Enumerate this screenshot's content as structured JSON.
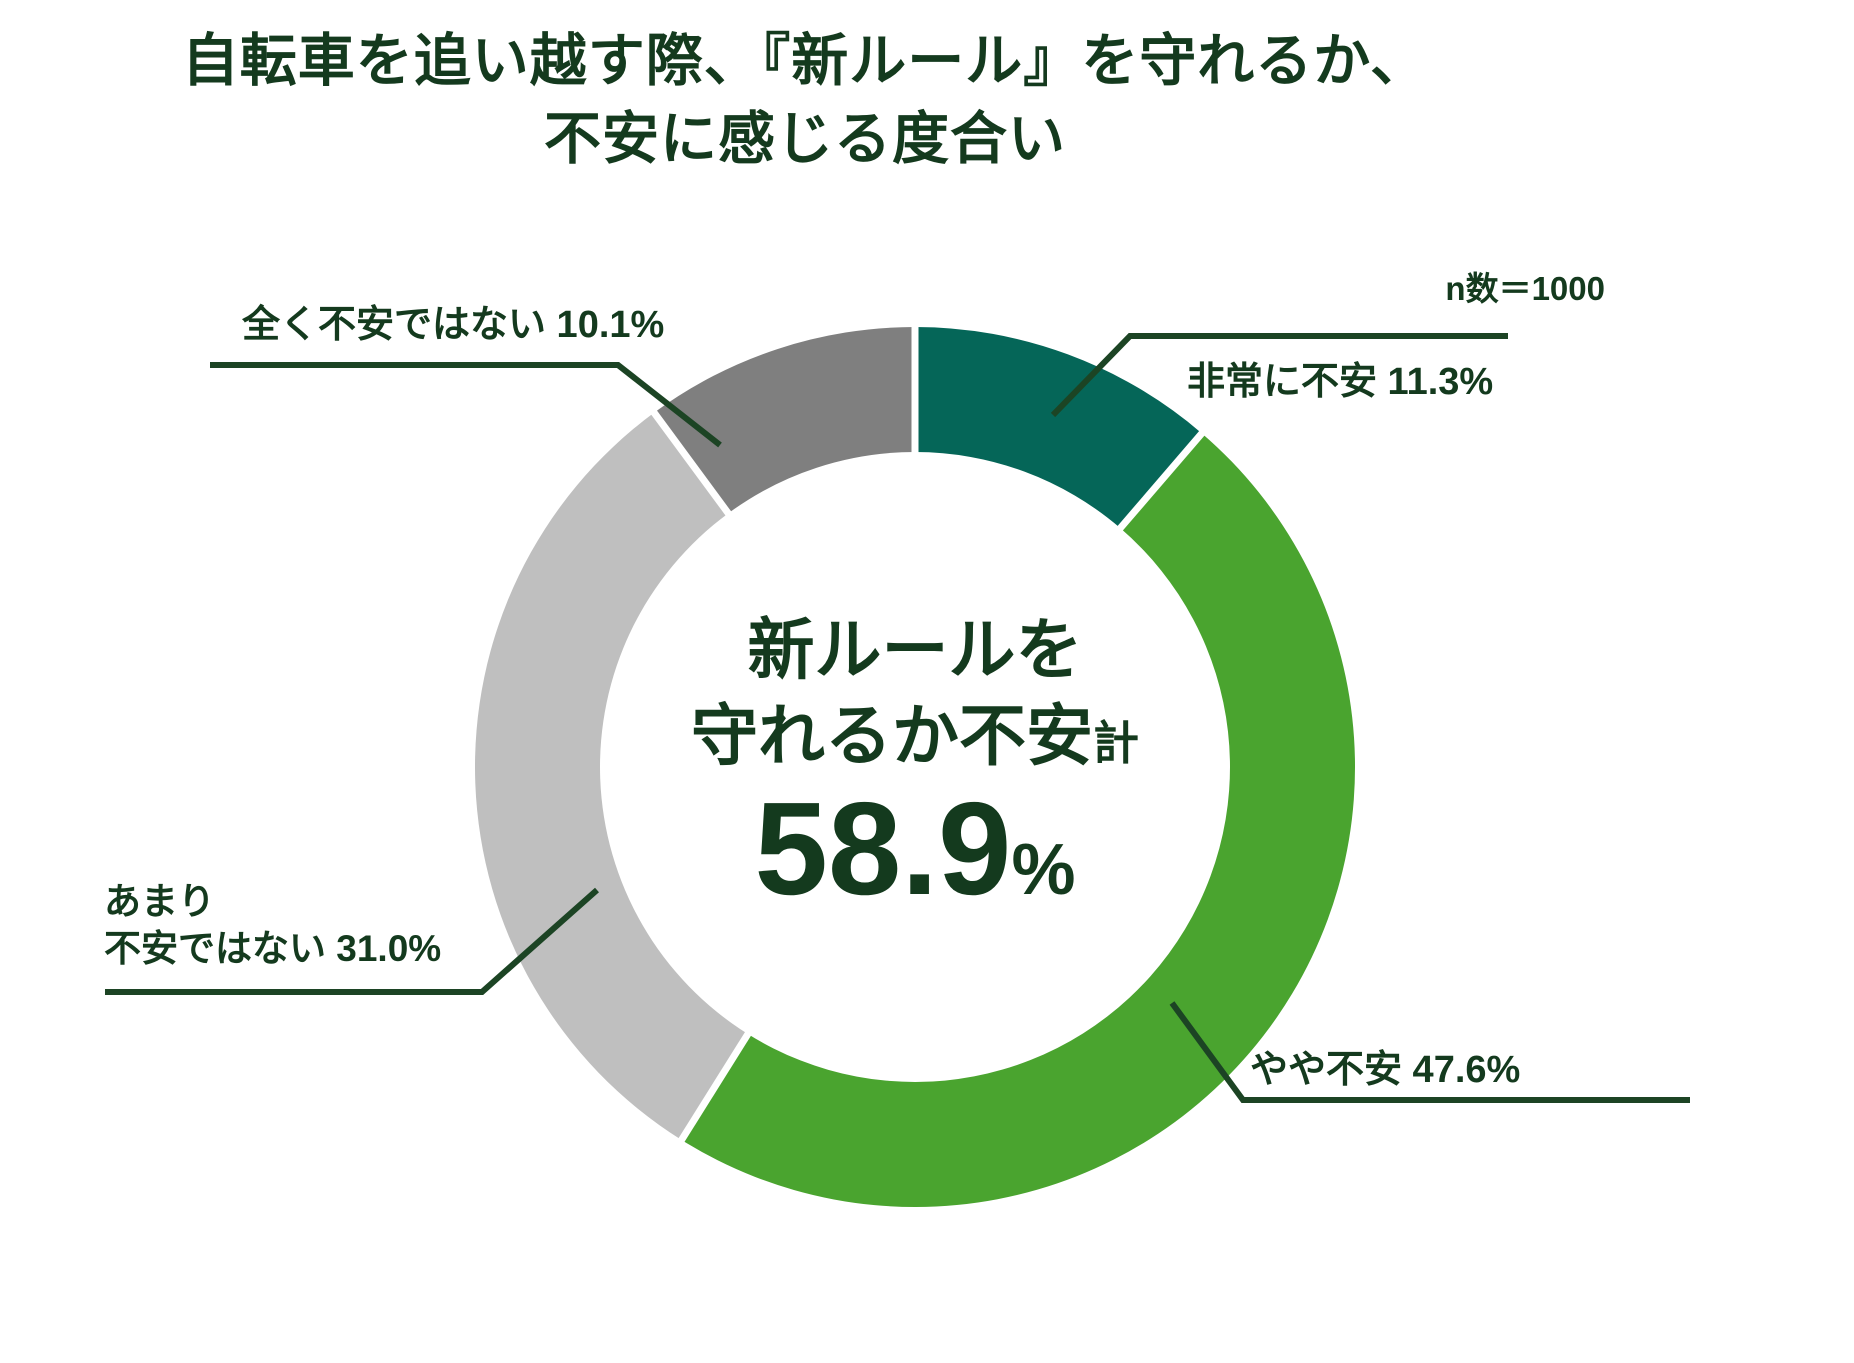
{
  "title": {
    "line1": "自転車を追い越す際、『新ルール』を守れるか、",
    "line2": "不安に感じる度合い"
  },
  "sample_note": "n数＝1000",
  "center": {
    "line1": "新ルールを",
    "line2_main": "守れるか不安",
    "line2_small": "計",
    "value": "58.9",
    "percent_sign": "%"
  },
  "labels": {
    "very_anxious": {
      "line1": "非常に不安 11.3%"
    },
    "somewhat_anxious": {
      "line1": "やや不安 47.6%"
    },
    "not_very_anxious": {
      "line1": "あまり",
      "line2": "不安ではない 31.0%"
    },
    "not_at_all_anxious": {
      "line1": "全く不安ではない 10.1%"
    }
  },
  "chart_data": {
    "type": "pie",
    "subtype": "donut",
    "title": "自転車を追い越す際、『新ルール』を守れるか、不安に感じる度合い",
    "n": 1000,
    "start_angle_deg": 0,
    "direction": "clockwise",
    "categories": [
      "非常に不安",
      "やや不安",
      "あまり不安ではない",
      "全く不安ではない"
    ],
    "values": [
      11.3,
      47.6,
      31.0,
      10.1
    ],
    "colors": [
      "#056658",
      "#4aa42f",
      "#bfbfbf",
      "#7f7f7f"
    ],
    "segment_keys": [
      "very-anxious",
      "somewhat-anxious",
      "not-very-anxious",
      "not-at-all-anxious"
    ],
    "center_total_label": "新ルールを守れるか不安計",
    "center_total_value": 58.9,
    "legend_position": "callout-labels"
  },
  "colors": {
    "text": "#143a1e",
    "leader_line": "#1c4424",
    "background": "#ffffff"
  }
}
